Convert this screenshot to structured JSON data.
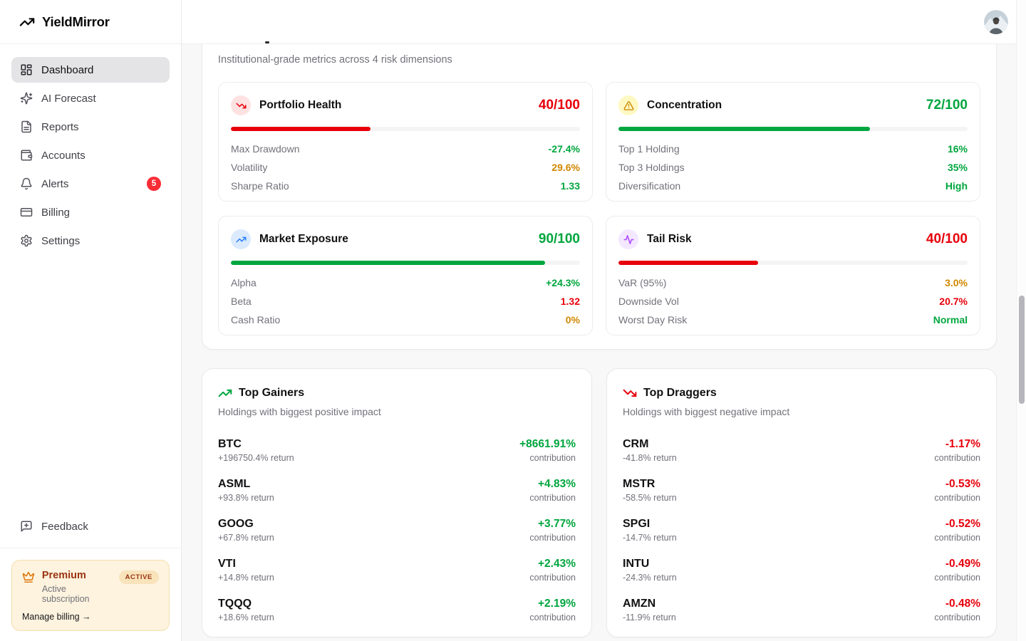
{
  "app": {
    "name": "YieldMirror"
  },
  "sidebar": {
    "nav": [
      {
        "label": "Dashboard",
        "active": true
      },
      {
        "label": "AI Forecast"
      },
      {
        "label": "Reports"
      },
      {
        "label": "Accounts"
      },
      {
        "label": "Alerts",
        "badge": "5"
      },
      {
        "label": "Billing"
      },
      {
        "label": "Settings"
      }
    ],
    "feedback": {
      "label": "Feedback"
    },
    "premium": {
      "title": "Premium",
      "status_badge": "ACTIVE",
      "subtitle": "Active subscription",
      "manage_link": "Manage billing →"
    }
  },
  "risk_panel": {
    "subtitle": "Institutional-grade metrics across 4 risk dimensions",
    "cards": [
      {
        "title": "Portfolio Health",
        "icon": "trending-down-icon",
        "score": "40/100",
        "tone": "red",
        "progress": 40,
        "rows": [
          {
            "label": "Max Drawdown",
            "value": "-27.4%",
            "tone": "green"
          },
          {
            "label": "Volatility",
            "value": "29.6%",
            "tone": "amber"
          },
          {
            "label": "Sharpe Ratio",
            "value": "1.33",
            "tone": "green"
          }
        ]
      },
      {
        "title": "Concentration",
        "icon": "alert-triangle-icon",
        "score": "72/100",
        "tone": "green",
        "progress": 72,
        "rows": [
          {
            "label": "Top 1 Holding",
            "value": "16%",
            "tone": "green"
          },
          {
            "label": "Top 3 Holdings",
            "value": "35%",
            "tone": "green"
          },
          {
            "label": "Diversification",
            "value": "High",
            "tone": "green"
          }
        ]
      },
      {
        "title": "Market Exposure",
        "icon": "trending-up-icon",
        "score": "90/100",
        "tone": "green",
        "progress": 90,
        "rows": [
          {
            "label": "Alpha",
            "value": "+24.3%",
            "tone": "green"
          },
          {
            "label": "Beta",
            "value": "1.32",
            "tone": "red"
          },
          {
            "label": "Cash Ratio",
            "value": "0%",
            "tone": "amber"
          }
        ]
      },
      {
        "title": "Tail Risk",
        "icon": "activity-icon",
        "score": "40/100",
        "tone": "red",
        "progress": 40,
        "rows": [
          {
            "label": "VaR (95%)",
            "value": "3.0%",
            "tone": "amber"
          },
          {
            "label": "Downside Vol",
            "value": "20.7%",
            "tone": "red"
          },
          {
            "label": "Worst Day Risk",
            "value": "Normal",
            "tone": "green"
          }
        ]
      }
    ]
  },
  "top_gainers": {
    "title": "Top Gainers",
    "subtitle": "Holdings with biggest positive impact",
    "contribution_label": "contribution",
    "tone": "green",
    "items": [
      {
        "ticker": "BTC",
        "return": "+196750.4% return",
        "contribution": "+8661.91%"
      },
      {
        "ticker": "ASML",
        "return": "+93.8% return",
        "contribution": "+4.83%"
      },
      {
        "ticker": "GOOG",
        "return": "+67.8% return",
        "contribution": "+3.77%"
      },
      {
        "ticker": "VTI",
        "return": "+14.8% return",
        "contribution": "+2.43%"
      },
      {
        "ticker": "TQQQ",
        "return": "+18.6% return",
        "contribution": "+2.19%"
      }
    ]
  },
  "top_draggers": {
    "title": "Top Draggers",
    "subtitle": "Holdings with biggest negative impact",
    "contribution_label": "contribution",
    "tone": "red",
    "items": [
      {
        "ticker": "CRM",
        "return": "-41.8% return",
        "contribution": "-1.17%"
      },
      {
        "ticker": "MSTR",
        "return": "-58.5% return",
        "contribution": "-0.53%"
      },
      {
        "ticker": "SPGI",
        "return": "-14.7% return",
        "contribution": "-0.52%"
      },
      {
        "ticker": "INTU",
        "return": "-24.3% return",
        "contribution": "-0.49%"
      },
      {
        "ticker": "AMZN",
        "return": "-11.9% return",
        "contribution": "-0.48%"
      }
    ]
  },
  "colors": {
    "red": "#e7000b",
    "green": "#00a63e",
    "amber": "#d08700",
    "alert_badge": "#fb2c36"
  }
}
